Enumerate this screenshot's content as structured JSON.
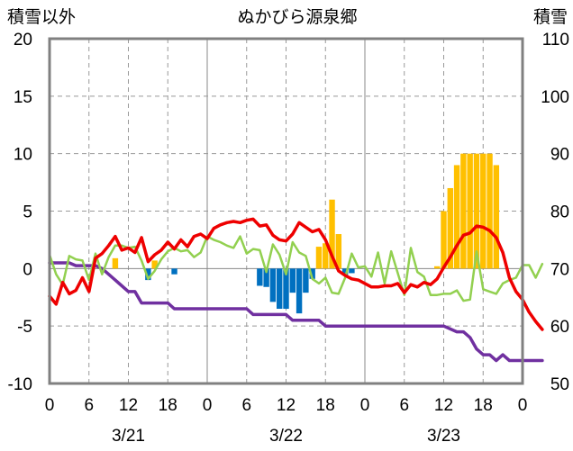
{
  "chart_data": {
    "type": "line",
    "title": "ぬかびら源泉郷",
    "left_axis_label": "積雪以外",
    "right_axis_label": "積雪",
    "ylim_left": [
      -10,
      20
    ],
    "ylim_right": [
      50,
      110
    ],
    "yticks_left": [
      "20",
      "15",
      "10",
      "5",
      "0",
      "-5",
      "-10"
    ],
    "yticks_right": [
      "110",
      "100",
      "90",
      "80",
      "70",
      "60",
      "50"
    ],
    "x_hours_range": [
      0,
      72
    ],
    "xtick_labels": [
      "0",
      "6",
      "12",
      "18",
      "0",
      "6",
      "12",
      "18",
      "0",
      "6",
      "12",
      "18",
      "0"
    ],
    "date_labels": [
      "3/21",
      "3/22",
      "3/23"
    ],
    "grid": true,
    "colors": {
      "temperature": "#ee0000",
      "wind": "#92d050",
      "snow_depth": "#7030a0",
      "precip_pos": "#ffc000",
      "precip_neg": "#0070c0",
      "frame": "#808080"
    },
    "series": [
      {
        "key": "temperature",
        "axis": "left",
        "values": [
          [
            0,
            -2.4
          ],
          [
            1,
            -3.1
          ],
          [
            2,
            -1.2
          ],
          [
            3,
            -2.2
          ],
          [
            4,
            -1.9
          ],
          [
            5,
            -0.8
          ],
          [
            6,
            -2.0
          ],
          [
            7,
            0.9
          ],
          [
            8,
            1.3
          ],
          [
            9,
            2.0
          ],
          [
            10,
            2.8
          ],
          [
            11,
            1.6
          ],
          [
            12,
            1.8
          ],
          [
            13,
            1.4
          ],
          [
            14,
            2.7
          ],
          [
            15,
            0.6
          ],
          [
            16,
            1.2
          ],
          [
            17,
            1.6
          ],
          [
            18,
            2.3
          ],
          [
            19,
            1.7
          ],
          [
            20,
            2.5
          ],
          [
            21,
            1.9
          ],
          [
            22,
            2.8
          ],
          [
            23,
            3.0
          ],
          [
            24,
            2.6
          ],
          [
            25,
            3.5
          ],
          [
            26,
            3.8
          ],
          [
            27,
            4.0
          ],
          [
            28,
            4.1
          ],
          [
            29,
            4.0
          ],
          [
            30,
            4.2
          ],
          [
            31,
            4.3
          ],
          [
            32,
            3.7
          ],
          [
            33,
            3.8
          ],
          [
            34,
            2.9
          ],
          [
            35,
            2.5
          ],
          [
            36,
            2.4
          ],
          [
            37,
            3.0
          ],
          [
            38,
            4.0
          ],
          [
            39,
            3.6
          ],
          [
            40,
            3.2
          ],
          [
            41,
            3.4
          ],
          [
            42,
            2.5
          ],
          [
            43,
            1.1
          ],
          [
            44,
            -0.2
          ],
          [
            45,
            -0.6
          ],
          [
            46,
            -0.9
          ],
          [
            47,
            -1.0
          ],
          [
            48,
            -1.3
          ],
          [
            49,
            -1.6
          ],
          [
            50,
            -1.6
          ],
          [
            51,
            -1.5
          ],
          [
            52,
            -1.5
          ],
          [
            53,
            -1.3
          ],
          [
            54,
            -2.1
          ],
          [
            55,
            -1.4
          ],
          [
            56,
            -1.6
          ],
          [
            57,
            -1.2
          ],
          [
            58,
            -1.4
          ],
          [
            59,
            -0.9
          ],
          [
            60,
            0.1
          ],
          [
            61,
            1.0
          ],
          [
            62,
            2.0
          ],
          [
            63,
            2.9
          ],
          [
            64,
            3.1
          ],
          [
            65,
            3.7
          ],
          [
            66,
            3.6
          ],
          [
            67,
            3.3
          ],
          [
            68,
            2.7
          ],
          [
            69,
            1.4
          ],
          [
            70,
            -0.8
          ],
          [
            71,
            -2.0
          ],
          [
            72,
            -2.7
          ],
          [
            73,
            -3.8
          ],
          [
            74,
            -4.6
          ],
          [
            75,
            -5.3
          ]
        ]
      },
      {
        "key": "wind",
        "axis": "left",
        "values": [
          [
            0,
            1.2
          ],
          [
            1,
            -0.5
          ],
          [
            2,
            -1.4
          ],
          [
            3,
            1.1
          ],
          [
            4,
            0.8
          ],
          [
            5,
            0.7
          ],
          [
            6,
            -1.0
          ],
          [
            7,
            1.3
          ],
          [
            8,
            -0.5
          ],
          [
            9,
            1.0
          ],
          [
            10,
            2.0
          ],
          [
            11,
            2.0
          ],
          [
            12,
            1.8
          ],
          [
            13,
            1.9
          ],
          [
            14,
            0.7
          ],
          [
            15,
            -0.9
          ],
          [
            16,
            -0.2
          ],
          [
            17,
            0.8
          ],
          [
            18,
            1.5
          ],
          [
            19,
            1.8
          ],
          [
            20,
            1.5
          ],
          [
            21,
            1.6
          ],
          [
            22,
            1.0
          ],
          [
            23,
            1.4
          ],
          [
            24,
            2.8
          ],
          [
            25,
            2.5
          ],
          [
            26,
            2.3
          ],
          [
            27,
            2.0
          ],
          [
            28,
            1.8
          ],
          [
            29,
            2.8
          ],
          [
            30,
            1.3
          ],
          [
            31,
            1.7
          ],
          [
            32,
            1.6
          ],
          [
            33,
            -0.3
          ],
          [
            34,
            2.1
          ],
          [
            35,
            1.2
          ],
          [
            36,
            -0.5
          ],
          [
            37,
            2.3
          ],
          [
            38,
            1.4
          ],
          [
            39,
            1.1
          ],
          [
            40,
            -0.9
          ],
          [
            41,
            -1.3
          ],
          [
            42,
            -0.8
          ],
          [
            43,
            -2.1
          ],
          [
            44,
            -2.2
          ],
          [
            45,
            -0.8
          ],
          [
            46,
            1.3
          ],
          [
            47,
            0.1
          ],
          [
            48,
            0.2
          ],
          [
            49,
            -0.7
          ],
          [
            50,
            1.4
          ],
          [
            51,
            -1.3
          ],
          [
            52,
            1.5
          ],
          [
            53,
            -0.4
          ],
          [
            54,
            -2.3
          ],
          [
            55,
            1.8
          ],
          [
            56,
            -0.3
          ],
          [
            57,
            -0.7
          ],
          [
            58,
            -2.3
          ],
          [
            59,
            -2.3
          ],
          [
            60,
            -2.2
          ],
          [
            61,
            -2.2
          ],
          [
            62,
            -1.9
          ],
          [
            63,
            -2.8
          ],
          [
            64,
            -2.7
          ],
          [
            65,
            1.5
          ],
          [
            66,
            -1.8
          ],
          [
            67,
            -2.0
          ],
          [
            68,
            -2.2
          ],
          [
            69,
            -1.3
          ],
          [
            70,
            -1.0
          ],
          [
            71,
            -0.8
          ],
          [
            72,
            0.3
          ],
          [
            73,
            0.3
          ],
          [
            74,
            -0.8
          ],
          [
            75,
            0.4
          ]
        ]
      },
      {
        "key": "snow_depth",
        "axis": "right",
        "values": [
          [
            0,
            71
          ],
          [
            3,
            71
          ],
          [
            4,
            70.5
          ],
          [
            7,
            70.5
          ],
          [
            8,
            70
          ],
          [
            9,
            69
          ],
          [
            10,
            68
          ],
          [
            11,
            67
          ],
          [
            12,
            66
          ],
          [
            13,
            66
          ],
          [
            14,
            64
          ],
          [
            18,
            64
          ],
          [
            19,
            63
          ],
          [
            24,
            63
          ],
          [
            30,
            63
          ],
          [
            31,
            62
          ],
          [
            36,
            62
          ],
          [
            37,
            61
          ],
          [
            41,
            61
          ],
          [
            42,
            60
          ],
          [
            48,
            60
          ],
          [
            54,
            60
          ],
          [
            60,
            60
          ],
          [
            62,
            59
          ],
          [
            63,
            59
          ],
          [
            64,
            58
          ],
          [
            65,
            56
          ],
          [
            66,
            55
          ],
          [
            67,
            55
          ],
          [
            68,
            54
          ],
          [
            69,
            55
          ],
          [
            70,
            54
          ],
          [
            72,
            54
          ],
          [
            75,
            54
          ]
        ]
      }
    ],
    "bars": {
      "axis": "left",
      "values": [
        [
          10,
          0.9
        ],
        [
          15,
          -1.0
        ],
        [
          16,
          0.7
        ],
        [
          19,
          -0.5
        ],
        [
          32,
          -1.5
        ],
        [
          33,
          -1.6
        ],
        [
          34,
          -2.9
        ],
        [
          35,
          -3.5
        ],
        [
          36,
          -3.5
        ],
        [
          37,
          -2.1
        ],
        [
          38,
          -3.9
        ],
        [
          39,
          -2.1
        ],
        [
          40,
          -0.9
        ],
        [
          41,
          1.9
        ],
        [
          42,
          2.2
        ],
        [
          43,
          6.0
        ],
        [
          44,
          3.0
        ],
        [
          45,
          -0.6
        ],
        [
          46,
          -0.4
        ],
        [
          59,
          0.2
        ],
        [
          60,
          5.0
        ],
        [
          61,
          7.0
        ],
        [
          62,
          9.0
        ],
        [
          63,
          10.0
        ],
        [
          64,
          10.0
        ],
        [
          65,
          10.0
        ],
        [
          66,
          10.0
        ],
        [
          67,
          10.0
        ],
        [
          68,
          9.0
        ]
      ]
    }
  }
}
